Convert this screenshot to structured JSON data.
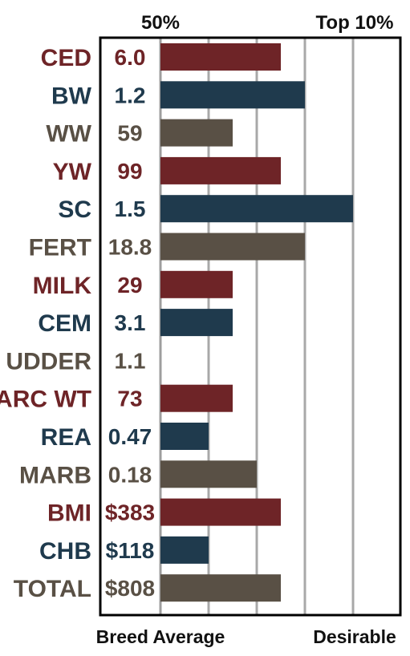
{
  "chart_data": {
    "type": "bar",
    "orientation": "horizontal",
    "title": "",
    "top_labels": [
      "50%",
      "Top 10%"
    ],
    "bottom_labels": [
      "Breed Average",
      "Desirable"
    ],
    "grid": true,
    "xlim": [
      0,
      5
    ],
    "categories": [
      "CED",
      "BW",
      "WW",
      "YW",
      "SC",
      "FERT",
      "MILK",
      "CEM",
      "UDDER",
      "CARC WT",
      "REA",
      "MARB",
      "BMI",
      "CHB",
      "TOTAL"
    ],
    "value_labels": [
      "6.0",
      "1.2",
      "59",
      "99",
      "1.5",
      "18.8",
      "29",
      "3.1",
      "1.1",
      "73",
      "0.47",
      "0.18",
      "$383",
      "$118",
      "$808"
    ],
    "values": [
      2.5,
      3.0,
      1.5,
      2.5,
      4.0,
      3.0,
      1.5,
      1.5,
      0,
      1.5,
      1.0,
      2.0,
      2.5,
      1.0,
      2.5
    ],
    "colors": [
      "#6e2427",
      "#1f3a4d",
      "#595045",
      "#6e2427",
      "#1f3a4d",
      "#595045",
      "#6e2427",
      "#1f3a4d",
      "#595045",
      "#6e2427",
      "#1f3a4d",
      "#595045",
      "#6e2427",
      "#1f3a4d",
      "#595045"
    ]
  }
}
